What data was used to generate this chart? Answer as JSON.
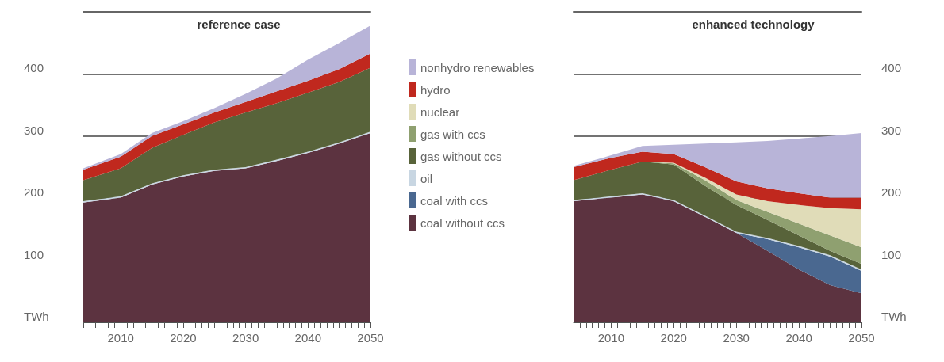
{
  "chart_data": [
    {
      "type": "area",
      "title": "reference case",
      "stacked": true,
      "x": [
        2004,
        2010,
        2015,
        2020,
        2025,
        2030,
        2035,
        2040,
        2045,
        2050
      ],
      "xlim": [
        2004,
        2050
      ],
      "xticks": [
        {
          "value": 2004,
          "label": null
        },
        {
          "value": 2005,
          "label": null
        },
        {
          "value": 2006,
          "label": null
        },
        {
          "value": 2007,
          "label": null
        },
        {
          "value": 2008,
          "label": null
        },
        {
          "value": 2009,
          "label": null
        },
        2010,
        {
          "value": 2011,
          "label": null
        },
        {
          "value": 2012,
          "label": null
        },
        {
          "value": 2013,
          "label": null
        },
        {
          "value": 2014,
          "label": null
        },
        {
          "value": 2015,
          "label": null
        },
        {
          "value": 2016,
          "label": null
        },
        {
          "value": 2017,
          "label": null
        },
        {
          "value": 2018,
          "label": null
        },
        {
          "value": 2019,
          "label": null
        },
        2020,
        {
          "value": 2021,
          "label": null
        },
        {
          "value": 2022,
          "label": null
        },
        {
          "value": 2023,
          "label": null
        },
        {
          "value": 2024,
          "label": null
        },
        {
          "value": 2025,
          "label": null
        },
        {
          "value": 2026,
          "label": null
        },
        {
          "value": 2027,
          "label": null
        },
        {
          "value": 2028,
          "label": null
        },
        {
          "value": 2029,
          "label": null
        },
        2030,
        {
          "value": 2031,
          "label": null
        },
        {
          "value": 2032,
          "label": null
        },
        {
          "value": 2033,
          "label": null
        },
        {
          "value": 2034,
          "label": null
        },
        {
          "value": 2035,
          "label": null
        },
        {
          "value": 2036,
          "label": null
        },
        {
          "value": 2037,
          "label": null
        },
        {
          "value": 2038,
          "label": null
        },
        {
          "value": 2039,
          "label": null
        },
        2040,
        {
          "value": 2041,
          "label": null
        },
        {
          "value": 2042,
          "label": null
        },
        {
          "value": 2043,
          "label": null
        },
        {
          "value": 2044,
          "label": null
        },
        {
          "value": 2045,
          "label": null
        },
        {
          "value": 2046,
          "label": null
        },
        {
          "value": 2047,
          "label": null
        },
        {
          "value": 2048,
          "label": null
        },
        {
          "value": 2049,
          "label": null
        },
        2050
      ],
      "ylim": [
        0,
        500
      ],
      "yticks": [
        {
          "value": 0,
          "label": "TWh"
        },
        100,
        200,
        300,
        400
      ],
      "grid": "y",
      "legend": false,
      "series": [
        {
          "color": "#5c3340",
          "values": [
            193,
            201,
            222,
            235,
            244,
            248,
            260,
            273,
            288,
            305
          ]
        },
        {
          "color": "#c8d6e2",
          "values": [
            2,
            2,
            2,
            2,
            2,
            2,
            2,
            2,
            2,
            2
          ]
        },
        {
          "color": "#58633a",
          "values": [
            34,
            45,
            57,
            65,
            76,
            88,
            91,
            95,
            97,
            103
          ]
        },
        {
          "color": "#c0281e",
          "values": [
            17,
            19,
            19,
            17,
            16,
            17,
            19,
            19,
            21,
            23
          ]
        },
        {
          "color": "#b8b4d8",
          "values": [
            2,
            4,
            5,
            5,
            7,
            13,
            21,
            34,
            42,
            45
          ]
        }
      ]
    },
    {
      "type": "area",
      "title": "enhanced technology",
      "stacked": true,
      "x": [
        2004,
        2010,
        2015,
        2020,
        2025,
        2030,
        2035,
        2040,
        2045,
        2050
      ],
      "xlim": [
        2004,
        2050
      ],
      "xticks": [
        {
          "value": 2004,
          "label": null
        },
        {
          "value": 2005,
          "label": null
        },
        {
          "value": 2006,
          "label": null
        },
        {
          "value": 2007,
          "label": null
        },
        {
          "value": 2008,
          "label": null
        },
        {
          "value": 2009,
          "label": null
        },
        2010,
        {
          "value": 2011,
          "label": null
        },
        {
          "value": 2012,
          "label": null
        },
        {
          "value": 2013,
          "label": null
        },
        {
          "value": 2014,
          "label": null
        },
        {
          "value": 2015,
          "label": null
        },
        {
          "value": 2016,
          "label": null
        },
        {
          "value": 2017,
          "label": null
        },
        {
          "value": 2018,
          "label": null
        },
        {
          "value": 2019,
          "label": null
        },
        2020,
        {
          "value": 2021,
          "label": null
        },
        {
          "value": 2022,
          "label": null
        },
        {
          "value": 2023,
          "label": null
        },
        {
          "value": 2024,
          "label": null
        },
        {
          "value": 2025,
          "label": null
        },
        {
          "value": 2026,
          "label": null
        },
        {
          "value": 2027,
          "label": null
        },
        {
          "value": 2028,
          "label": null
        },
        {
          "value": 2029,
          "label": null
        },
        2030,
        {
          "value": 2031,
          "label": null
        },
        {
          "value": 2032,
          "label": null
        },
        {
          "value": 2033,
          "label": null
        },
        {
          "value": 2034,
          "label": null
        },
        {
          "value": 2035,
          "label": null
        },
        {
          "value": 2036,
          "label": null
        },
        {
          "value": 2037,
          "label": null
        },
        {
          "value": 2038,
          "label": null
        },
        {
          "value": 2039,
          "label": null
        },
        2040,
        {
          "value": 2041,
          "label": null
        },
        {
          "value": 2042,
          "label": null
        },
        {
          "value": 2043,
          "label": null
        },
        {
          "value": 2044,
          "label": null
        },
        {
          "value": 2045,
          "label": null
        },
        {
          "value": 2046,
          "label": null
        },
        {
          "value": 2047,
          "label": null
        },
        {
          "value": 2048,
          "label": null
        },
        {
          "value": 2049,
          "label": null
        },
        2050
      ],
      "ylim": [
        0,
        500
      ],
      "yticks": [
        {
          "value": 0,
          "label": "TWh"
        },
        100,
        200,
        300,
        400
      ],
      "grid": "y",
      "legend": "left",
      "series": [
        {
          "name": "coal without ccs",
          "color": "#5c3340",
          "values": [
            195,
            201,
            206,
            195,
            170,
            144,
            115,
            85,
            60,
            47
          ]
        },
        {
          "name": "coal with ccs",
          "color": "#4a6890",
          "values": [
            0,
            0,
            0,
            0,
            0,
            0,
            19,
            36,
            46,
            36
          ]
        },
        {
          "name": "oil",
          "color": "#c8d6e2",
          "values": [
            2,
            2,
            2,
            2,
            2,
            2,
            2,
            2,
            2,
            2
          ]
        },
        {
          "name": "gas without ccs",
          "color": "#58633a",
          "values": [
            32,
            43,
            51,
            57,
            48,
            43,
            29,
            17,
            7,
            9
          ]
        },
        {
          "name": "gas with ccs",
          "color": "#8fa070",
          "values": [
            0,
            0,
            0,
            2,
            9,
            8,
            13,
            19,
            25,
            27
          ]
        },
        {
          "name": "nuclear",
          "color": "#e0dcb8",
          "values": [
            0,
            0,
            0,
            1,
            4,
            9,
            17,
            30,
            44,
            61
          ]
        },
        {
          "name": "hydro",
          "color": "#c0281e",
          "values": [
            21,
            19,
            16,
            14,
            17,
            21,
            21,
            19,
            17,
            19
          ]
        },
        {
          "name": "nonhydro renewables",
          "color": "#b8b4d8",
          "values": [
            2,
            4,
            9,
            15,
            38,
            63,
            76,
            88,
            99,
            104
          ]
        }
      ]
    }
  ]
}
